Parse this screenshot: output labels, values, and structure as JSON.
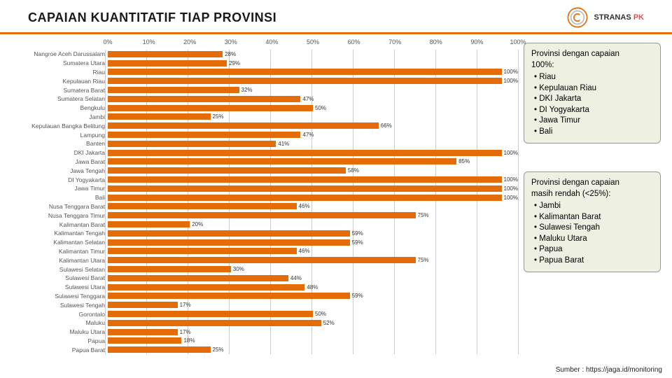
{
  "header": {
    "title": "CAPAIAN KUANTITATIF TIAP PROVINSI",
    "title_color": "#1a1a1a",
    "underline_color": "#e36c09",
    "logo": {
      "text_main": "STRANAS",
      "text_accent": "PK"
    }
  },
  "chart": {
    "type": "bar-horizontal",
    "x_min": 0,
    "x_max": 100,
    "x_tick_step": 10,
    "x_tick_suffix": "%",
    "bar_color": "#e36c09",
    "grid_color": "#cccccc",
    "background": "#ffffff",
    "label_fontsize": 8.5,
    "value_fontsize": 8,
    "rows": [
      {
        "label": "Nangroe Aceh Darussalam",
        "value": 28
      },
      {
        "label": "Sumatera Utara",
        "value": 29
      },
      {
        "label": "Riau",
        "value": 100
      },
      {
        "label": "Kepulauan Riau",
        "value": 100
      },
      {
        "label": "Sumatera Barat",
        "value": 32
      },
      {
        "label": "Sumatera Selatan",
        "value": 47
      },
      {
        "label": "Bengkulu",
        "value": 50
      },
      {
        "label": "Jambi",
        "value": 25
      },
      {
        "label": "Kepulauan Bangka Belitung",
        "value": 66
      },
      {
        "label": "Lampung",
        "value": 47
      },
      {
        "label": "Banten",
        "value": 41
      },
      {
        "label": "DKI Jakarta",
        "value": 100
      },
      {
        "label": "Jawa Barat",
        "value": 85
      },
      {
        "label": "Jawa Tengah",
        "value": 58
      },
      {
        "label": "DI Yogyakarta",
        "value": 100
      },
      {
        "label": "Jawa Timur",
        "value": 100
      },
      {
        "label": "Bali",
        "value": 100
      },
      {
        "label": "Nusa Tenggara Barat",
        "value": 46
      },
      {
        "label": "Nusa Tenggara Timur",
        "value": 75
      },
      {
        "label": "Kalimantan Barat",
        "value": 20
      },
      {
        "label": "Kalimantan Tengah",
        "value": 59
      },
      {
        "label": "Kalimantan Selatan",
        "value": 59
      },
      {
        "label": "Kalimantan Timur",
        "value": 46
      },
      {
        "label": "Kalimantan Utara",
        "value": 75
      },
      {
        "label": "Sulawesi Selatan",
        "value": 30
      },
      {
        "label": "Sulawesi Barat",
        "value": 44
      },
      {
        "label": "Sulawesi Utara",
        "value": 48
      },
      {
        "label": "Sulawesi Tenggara",
        "value": 59
      },
      {
        "label": "Sulawesi Tengah",
        "value": 17
      },
      {
        "label": "Gorontalo",
        "value": 50
      },
      {
        "label": "Maluku",
        "value": 52
      },
      {
        "label": "Maluku Utara",
        "value": 17
      },
      {
        "label": "Papua",
        "value": 18
      },
      {
        "label": "Papua Barat",
        "value": 25
      }
    ]
  },
  "box100": {
    "bg": "#eef0e2",
    "heading1": "Provinsi dengan capaian",
    "heading2": "100%:",
    "items": [
      "Riau",
      "Kepulauan Riau",
      "DKI Jakarta",
      "DI Yogyakarta",
      "Jawa Timur",
      "Bali"
    ]
  },
  "boxLow": {
    "bg": "#eef0e2",
    "heading1": "Provinsi dengan capaian",
    "heading2": "masih rendah (<25%):",
    "items": [
      "Jambi",
      "Kalimantan Barat",
      "Sulawesi Tengah",
      "Maluku Utara",
      "Papua",
      "Papua Barat"
    ]
  },
  "source": {
    "prefix": "Sumber : ",
    "text": "https://jaga.id/monitoring"
  }
}
